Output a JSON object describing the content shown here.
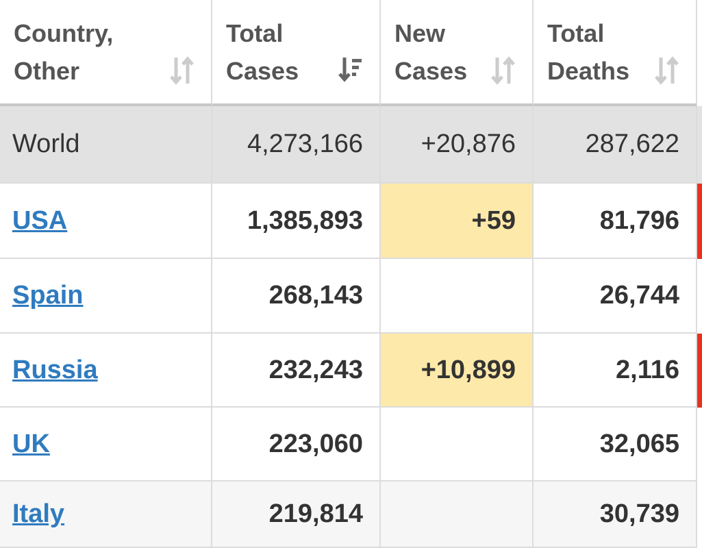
{
  "table": {
    "headers": [
      "Country,\nOther",
      "Total\nCases",
      "New\nCases",
      "Total\nDeaths"
    ],
    "world": {
      "name": "World",
      "total_cases": "4,273,166",
      "new_cases": "+20,876",
      "total_deaths": "287,622"
    },
    "rows": [
      {
        "name": "USA",
        "total_cases": "1,385,893",
        "new_cases": "+59",
        "total_deaths": "81,796",
        "highlight": "#fde9a9",
        "flag": "#e8321e"
      },
      {
        "name": "Spain",
        "total_cases": "268,143",
        "new_cases": null,
        "total_deaths": "26,744",
        "highlight": null,
        "flag": null
      },
      {
        "name": "Russia",
        "total_cases": "232,243",
        "new_cases": "+10,899",
        "total_deaths": "2,116",
        "highlight": "#fde9a9",
        "flag": "#e8321e"
      },
      {
        "name": "UK",
        "total_cases": "223,060",
        "new_cases": null,
        "total_deaths": "32,065",
        "highlight": null,
        "flag": null
      },
      {
        "name": "Italy",
        "total_cases": "219,814",
        "new_cases": null,
        "total_deaths": "30,739",
        "highlight": null,
        "flag": null
      }
    ]
  }
}
